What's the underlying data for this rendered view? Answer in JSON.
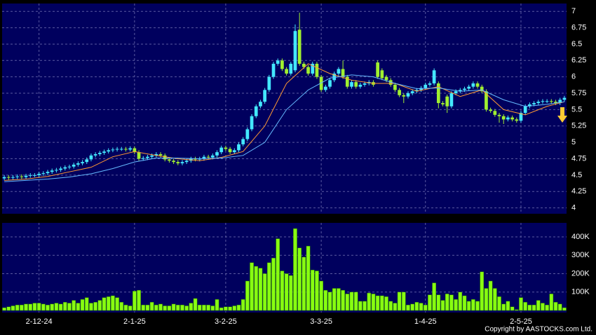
{
  "chart_data": [
    {
      "type": "candlestick",
      "ylim": [
        3.91,
        7.12
      ],
      "yticks": [
        4,
        4.25,
        4.5,
        4.75,
        5,
        5.25,
        5.5,
        5.75,
        6,
        6.25,
        6.5,
        6.75,
        7
      ],
      "grid": true,
      "up_color": "#44e8ff",
      "down_color": "#a0f030",
      "open": [
        4.45,
        4.47,
        4.46,
        4.47,
        4.48,
        4.47,
        4.49,
        4.5,
        4.5,
        4.52,
        4.53,
        4.55,
        4.57,
        4.58,
        4.6,
        4.62,
        4.63,
        4.66,
        4.68,
        4.7,
        4.74,
        4.8,
        4.82,
        4.84,
        4.86,
        4.88,
        4.89,
        4.9,
        4.9,
        4.89,
        4.91,
        4.85,
        4.75,
        4.76,
        4.78,
        4.8,
        4.82,
        4.8,
        4.74,
        4.72,
        4.7,
        4.68,
        4.7,
        4.72,
        4.75,
        4.74,
        4.75,
        4.78,
        4.77,
        4.8,
        4.85,
        4.92,
        4.9,
        4.85,
        4.88,
        4.97,
        5.05,
        5.2,
        5.4,
        5.55,
        5.62,
        5.8,
        6.0,
        6.2,
        6.25,
        6.12,
        6.05,
        6.1,
        6.72,
        6.2,
        6.15,
        6.05,
        6.2,
        6.0,
        5.8,
        5.85,
        5.95,
        6.05,
        6.12,
        6.0,
        5.85,
        5.92,
        5.85,
        5.88,
        5.9,
        5.92,
        6.22,
        6.1,
        6.0,
        5.95,
        5.88,
        5.8,
        5.72,
        5.7,
        5.75,
        5.78,
        5.8,
        5.83,
        5.88,
        5.9,
        5.9,
        5.6,
        5.7,
        5.55,
        5.75,
        5.78,
        5.8,
        5.82,
        5.85,
        5.9,
        5.85,
        5.78,
        5.5,
        5.48,
        5.42,
        5.4,
        5.35,
        5.38,
        5.35,
        5.33,
        5.45,
        5.55,
        5.58,
        5.6,
        5.62,
        5.63,
        5.63,
        5.62,
        5.6,
        5.65
      ],
      "high": [
        4.5,
        4.5,
        4.5,
        4.51,
        4.51,
        4.52,
        4.53,
        4.53,
        4.55,
        4.56,
        4.58,
        4.6,
        4.61,
        4.63,
        4.65,
        4.66,
        4.69,
        4.71,
        4.73,
        4.77,
        4.83,
        4.85,
        4.87,
        4.89,
        4.91,
        4.92,
        4.93,
        4.93,
        4.93,
        4.94,
        4.94,
        4.88,
        4.79,
        4.81,
        4.83,
        4.85,
        4.85,
        4.83,
        4.77,
        4.75,
        4.73,
        4.73,
        4.75,
        4.78,
        4.78,
        4.78,
        4.81,
        4.81,
        4.83,
        4.88,
        4.95,
        4.95,
        4.93,
        4.91,
        5.0,
        5.08,
        5.23,
        5.43,
        5.58,
        5.65,
        5.83,
        6.03,
        6.23,
        6.28,
        6.28,
        6.15,
        6.23,
        6.8,
        6.98,
        6.23,
        6.18,
        6.23,
        6.23,
        6.03,
        5.88,
        5.98,
        6.08,
        6.15,
        6.25,
        6.03,
        5.95,
        5.95,
        5.91,
        5.93,
        5.95,
        5.95,
        6.25,
        6.13,
        6.03,
        5.98,
        5.91,
        5.83,
        5.75,
        5.78,
        5.81,
        5.83,
        5.86,
        5.91,
        5.93,
        6.13,
        5.93,
        5.63,
        5.73,
        5.78,
        5.81,
        5.83,
        5.85,
        5.88,
        5.93,
        5.93,
        5.88,
        5.81,
        5.53,
        5.51,
        5.45,
        5.43,
        5.41,
        5.41,
        5.38,
        5.48,
        5.58,
        5.61,
        5.63,
        5.65,
        5.66,
        5.66,
        5.66,
        5.65,
        5.68,
        5.71
      ],
      "low": [
        4.42,
        4.43,
        4.43,
        4.44,
        4.44,
        4.44,
        4.46,
        4.47,
        4.47,
        4.49,
        4.5,
        4.52,
        4.54,
        4.55,
        4.57,
        4.59,
        4.6,
        4.63,
        4.65,
        4.67,
        4.71,
        4.77,
        4.79,
        4.81,
        4.83,
        4.85,
        4.86,
        4.87,
        4.86,
        4.86,
        4.82,
        4.72,
        4.72,
        4.73,
        4.75,
        4.77,
        4.77,
        4.71,
        4.69,
        4.67,
        4.65,
        4.65,
        4.67,
        4.69,
        4.71,
        4.71,
        4.72,
        4.74,
        4.74,
        4.77,
        4.82,
        4.87,
        4.82,
        4.82,
        4.85,
        4.94,
        5.02,
        5.17,
        5.37,
        5.52,
        5.59,
        5.77,
        5.97,
        6.17,
        6.09,
        6.02,
        6.02,
        6.07,
        6.17,
        6.12,
        6.02,
        6.02,
        5.97,
        5.77,
        5.77,
        5.82,
        5.92,
        6.02,
        5.97,
        5.82,
        5.82,
        5.82,
        5.82,
        5.85,
        5.87,
        5.85,
        5.97,
        5.95,
        5.92,
        5.85,
        5.77,
        5.69,
        5.6,
        5.67,
        5.72,
        5.75,
        5.77,
        5.8,
        5.85,
        5.87,
        5.52,
        5.55,
        5.45,
        5.52,
        5.72,
        5.75,
        5.77,
        5.79,
        5.82,
        5.82,
        5.75,
        5.47,
        5.45,
        5.39,
        5.3,
        5.28,
        5.32,
        5.32,
        5.3,
        5.3,
        5.42,
        5.52,
        5.55,
        5.57,
        5.59,
        5.6,
        5.59,
        5.57,
        5.57,
        5.62
      ],
      "close": [
        4.47,
        4.46,
        4.47,
        4.48,
        4.47,
        4.49,
        4.5,
        4.5,
        4.52,
        4.53,
        4.55,
        4.57,
        4.58,
        4.6,
        4.62,
        4.63,
        4.66,
        4.68,
        4.7,
        4.74,
        4.8,
        4.82,
        4.84,
        4.86,
        4.88,
        4.89,
        4.9,
        4.9,
        4.89,
        4.91,
        4.85,
        4.75,
        4.76,
        4.78,
        4.8,
        4.82,
        4.8,
        4.74,
        4.72,
        4.7,
        4.68,
        4.7,
        4.72,
        4.75,
        4.74,
        4.75,
        4.78,
        4.77,
        4.8,
        4.85,
        4.92,
        4.9,
        4.85,
        4.88,
        4.97,
        5.05,
        5.2,
        5.4,
        5.55,
        5.62,
        5.8,
        6.0,
        6.2,
        6.25,
        6.12,
        6.05,
        6.2,
        6.7,
        6.2,
        6.15,
        6.05,
        6.2,
        6.0,
        5.8,
        5.85,
        5.95,
        6.05,
        6.12,
        6.0,
        5.85,
        5.92,
        5.85,
        5.88,
        5.9,
        5.92,
        5.88,
        6.0,
        5.98,
        5.95,
        5.88,
        5.8,
        5.72,
        5.7,
        5.75,
        5.78,
        5.8,
        5.83,
        5.88,
        5.9,
        6.1,
        5.6,
        5.58,
        5.55,
        5.75,
        5.78,
        5.8,
        5.82,
        5.85,
        5.9,
        5.85,
        5.78,
        5.5,
        5.48,
        5.42,
        5.4,
        5.35,
        5.38,
        5.35,
        5.33,
        5.45,
        5.55,
        5.58,
        5.6,
        5.62,
        5.63,
        5.63,
        5.62,
        5.6,
        5.65,
        5.68
      ],
      "series": [
        {
          "color": "#ff9933",
          "x": [
            0,
            5,
            10,
            15,
            20,
            25,
            30,
            35,
            40,
            45,
            50,
            55,
            60,
            65,
            70,
            75,
            80,
            85,
            90,
            95,
            100,
            105,
            110,
            115,
            120,
            125,
            129
          ],
          "values": [
            4.42,
            4.44,
            4.48,
            4.55,
            4.62,
            4.78,
            4.86,
            4.8,
            4.75,
            4.72,
            4.77,
            4.86,
            5.25,
            5.9,
            6.2,
            6.05,
            5.95,
            5.9,
            5.9,
            5.78,
            5.85,
            5.7,
            5.8,
            5.5,
            5.42,
            5.55,
            5.62
          ]
        },
        {
          "color": "#66bbff",
          "x": [
            0,
            5,
            10,
            15,
            20,
            25,
            30,
            35,
            40,
            45,
            50,
            55,
            60,
            65,
            70,
            75,
            80,
            85,
            90,
            95,
            100,
            105,
            110,
            115,
            120,
            125,
            129
          ],
          "values": [
            4.4,
            4.42,
            4.44,
            4.47,
            4.52,
            4.6,
            4.7,
            4.76,
            4.76,
            4.75,
            4.76,
            4.8,
            5.0,
            5.5,
            5.8,
            5.98,
            6.03,
            6.0,
            5.9,
            5.82,
            5.83,
            5.78,
            5.8,
            5.65,
            5.55,
            5.58,
            5.62
          ]
        }
      ]
    },
    {
      "type": "bar",
      "color": "#88ff11",
      "ylim": [
        0,
        476000
      ],
      "yticks": [
        {
          "value": 100000,
          "label": "100K"
        },
        {
          "value": 200000,
          "label": "200K"
        },
        {
          "value": 300000,
          "label": "300K"
        },
        {
          "value": 400000,
          "label": "400K"
        }
      ],
      "grid": true,
      "categories": [
        null,
        null,
        null,
        null,
        null,
        null,
        null,
        null,
        "2-12-24",
        null,
        null,
        null,
        null,
        null,
        null,
        null,
        null,
        null,
        null,
        null,
        null,
        null,
        null,
        null,
        null,
        null,
        null,
        null,
        null,
        null,
        "2-1-25",
        null,
        null,
        null,
        null,
        null,
        null,
        null,
        null,
        null,
        null,
        null,
        null,
        null,
        null,
        null,
        null,
        null,
        null,
        null,
        null,
        "3-2-25",
        null,
        null,
        null,
        null,
        null,
        null,
        null,
        null,
        null,
        null,
        null,
        null,
        null,
        null,
        null,
        null,
        null,
        null,
        null,
        null,
        null,
        "3-3-25",
        null,
        null,
        null,
        null,
        null,
        null,
        null,
        null,
        null,
        null,
        null,
        null,
        null,
        null,
        null,
        null,
        null,
        null,
        null,
        null,
        null,
        null,
        null,
        "1-4-25",
        null,
        null,
        null,
        null,
        null,
        null,
        null,
        null,
        null,
        null,
        null,
        null,
        null,
        null,
        null,
        null,
        null,
        null,
        null,
        null,
        null,
        "2-5-25",
        null,
        null,
        null,
        null,
        null,
        null,
        null,
        null,
        null,
        null
      ],
      "values": [
        15000,
        20000,
        25000,
        30000,
        30000,
        35000,
        35000,
        40000,
        40000,
        35000,
        30000,
        35000,
        40000,
        35000,
        45000,
        40000,
        55000,
        40000,
        60000,
        70000,
        40000,
        45000,
        55000,
        70000,
        75000,
        80000,
        70000,
        45000,
        30000,
        25000,
        105000,
        110000,
        30000,
        30000,
        45000,
        30000,
        35000,
        25000,
        25000,
        35000,
        30000,
        30000,
        25000,
        40000,
        65000,
        30000,
        30000,
        30000,
        25000,
        60000,
        15000,
        20000,
        20000,
        25000,
        30000,
        60000,
        160000,
        260000,
        240000,
        230000,
        200000,
        260000,
        285000,
        390000,
        215000,
        200000,
        190000,
        445000,
        340000,
        290000,
        350000,
        220000,
        215000,
        160000,
        110000,
        100000,
        120000,
        120000,
        110000,
        90000,
        100000,
        100000,
        50000,
        50000,
        95000,
        90000,
        80000,
        80000,
        75000,
        50000,
        40000,
        100000,
        100000,
        30000,
        35000,
        45000,
        40000,
        30000,
        85000,
        150000,
        85000,
        55000,
        90000,
        85000,
        60000,
        100000,
        80000,
        50000,
        60000,
        50000,
        210000,
        120000,
        160000,
        120000,
        75000,
        35000,
        50000,
        20000,
        5000,
        70000,
        45000,
        30000,
        30000,
        55000,
        40000,
        30000,
        90000,
        45000,
        35000,
        15000
      ]
    }
  ],
  "copyright": "Copyright by AASTOCKS.com Ltd."
}
